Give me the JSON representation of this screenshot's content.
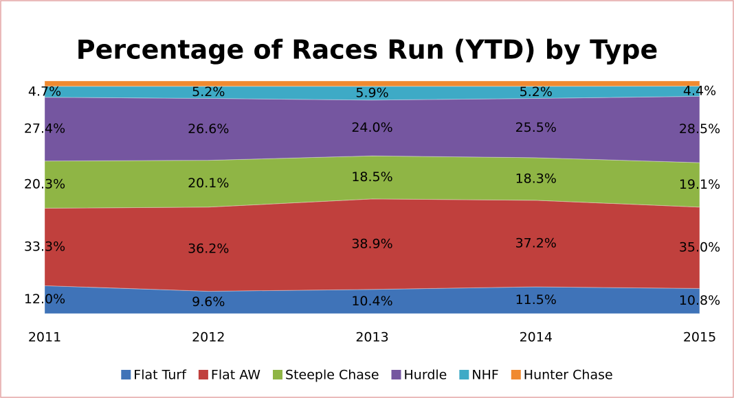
{
  "chart_data": {
    "type": "stacked-area",
    "title": "Percentage of Races Run (YTD) by Type",
    "categories": [
      "2011",
      "2012",
      "2013",
      "2014",
      "2015"
    ],
    "ylim": [
      0,
      100
    ],
    "legend": "bottom",
    "series": [
      {
        "name": "Flat Turf",
        "color": "#3f73b8",
        "values": [
          12.0,
          9.6,
          10.4,
          11.5,
          10.8
        ],
        "value_labels": [
          "12.0%",
          "9.6%",
          "10.4%",
          "11.5%",
          "10.8%"
        ]
      },
      {
        "name": "Flat AW",
        "color": "#c0403d",
        "values": [
          33.3,
          36.2,
          38.9,
          37.2,
          35.0
        ],
        "value_labels": [
          "33.3%",
          "36.2%",
          "38.9%",
          "37.2%",
          "35.0%"
        ]
      },
      {
        "name": "Steeple Chase",
        "color": "#8fb545",
        "values": [
          20.3,
          20.1,
          18.5,
          18.3,
          19.1
        ],
        "value_labels": [
          "20.3%",
          "20.1%",
          "18.5%",
          "18.3%",
          "19.1%"
        ]
      },
      {
        "name": "Hurdle",
        "color": "#7556a0",
        "values": [
          27.4,
          26.6,
          24.0,
          25.5,
          28.5
        ],
        "value_labels": [
          "27.4%",
          "26.6%",
          "24.0%",
          "25.5%",
          "28.5%"
        ]
      },
      {
        "name": "NHF",
        "color": "#3eaac6",
        "values": [
          4.7,
          5.2,
          5.9,
          5.2,
          4.4
        ],
        "value_labels": [
          "4.7%",
          "5.2%",
          "5.9%",
          "5.2%",
          "4.4%"
        ]
      },
      {
        "name": "Hunter Chase",
        "color": "#f08a30",
        "values": [
          2.3,
          2.3,
          2.3,
          2.3,
          2.2
        ]
      }
    ]
  }
}
